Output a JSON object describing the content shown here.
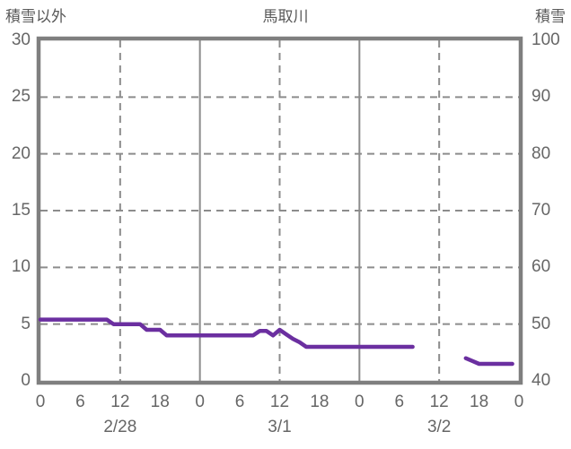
{
  "header": {
    "left_axis_title": "積雪以外",
    "chart_title": "馬取川",
    "right_axis_title": "積雪"
  },
  "colors": {
    "line": "#6b2fa0",
    "frame": "#7f7f7f",
    "grid": "#8c8c8c",
    "tick_text": "#666666",
    "title_text": "#595959",
    "background": "#ffffff"
  },
  "chart_data": {
    "type": "line",
    "title": "馬取川",
    "left_axis": {
      "label": "積雪以外",
      "min": 0,
      "max": 30,
      "ticks": [
        30,
        25,
        20,
        15,
        10,
        5,
        0
      ]
    },
    "right_axis": {
      "label": "積雪",
      "min": 40,
      "max": 100,
      "ticks": [
        100,
        90,
        80,
        70,
        60,
        50,
        40
      ]
    },
    "x_axis": {
      "span_hours": 72,
      "hour_label_step": 6,
      "hour_labels": [
        "0",
        "6",
        "12",
        "18",
        "0",
        "6",
        "12",
        "18",
        "0",
        "6",
        "12",
        "18",
        "0"
      ],
      "date_labels": [
        {
          "label": "2/28",
          "hour": 12
        },
        {
          "label": "3/1",
          "hour": 36
        },
        {
          "label": "3/2",
          "hour": 60
        }
      ],
      "vertical_gridlines": [
        {
          "hour": 12,
          "style": "dashed"
        },
        {
          "hour": 24,
          "style": "solid"
        },
        {
          "hour": 36,
          "style": "dashed"
        },
        {
          "hour": 48,
          "style": "solid"
        },
        {
          "hour": 60,
          "style": "dashed"
        }
      ]
    },
    "grid": {
      "horizontal_dashed_at": [
        25,
        20,
        15,
        10,
        5
      ]
    },
    "series": [
      {
        "name": "積雪以外",
        "axis": "left",
        "color": "#6b2fa0",
        "start_hour": 0,
        "interval_hours": 1,
        "values": [
          5.4,
          5.4,
          5.4,
          5.4,
          5.4,
          5.4,
          5.4,
          5.4,
          5.4,
          5.4,
          5.4,
          5.0,
          5.0,
          5.0,
          5.0,
          5.0,
          4.5,
          4.5,
          4.5,
          4.0,
          4.0,
          4.0,
          4.0,
          4.0,
          4.0,
          4.0,
          4.0,
          4.0,
          4.0,
          4.0,
          4.0,
          4.0,
          4.0,
          4.4,
          4.4,
          4.0,
          4.5,
          4.1,
          3.7,
          3.4,
          3.0,
          3.0,
          3.0,
          3.0,
          3.0,
          3.0,
          3.0,
          3.0,
          3.0,
          3.0,
          3.0,
          3.0,
          3.0,
          3.0,
          3.0,
          3.0,
          3.0,
          null,
          null,
          null,
          null,
          null,
          null,
          null,
          2.0,
          1.75,
          1.5,
          1.5,
          1.5,
          1.5,
          1.5,
          1.5
        ]
      }
    ]
  }
}
